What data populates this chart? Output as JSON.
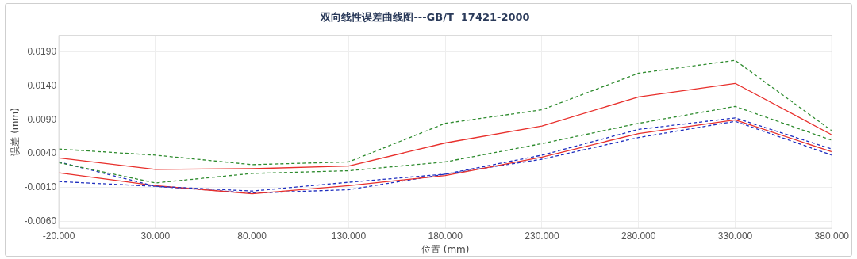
{
  "chart_data": {
    "type": "line",
    "title": "双向线性误差曲线图---GB/T  17421-2000",
    "xlabel": "位置 (mm)",
    "ylabel": "误差 (mm)",
    "x": [
      -20,
      30,
      80,
      130,
      180,
      230,
      280,
      330,
      380
    ],
    "series": [
      {
        "color": "#2e8b2e",
        "line_style": "dashed",
        "values": [
          0.0047,
          0.0038,
          0.0024,
          0.0028,
          0.0085,
          0.0105,
          0.0159,
          0.0178,
          0.0074
        ]
      },
      {
        "color": "#e8302c",
        "line_style": "solid",
        "values": [
          0.0034,
          0.0017,
          0.0018,
          0.0022,
          0.0056,
          0.0081,
          0.0124,
          0.0144,
          0.0068
        ]
      },
      {
        "color": "#2e8b2e",
        "line_style": "dashed",
        "values": [
          0.0027,
          -0.0003,
          0.0011,
          0.0015,
          0.0028,
          0.0055,
          0.0085,
          0.011,
          0.006
        ]
      },
      {
        "color": "#1f2fbf",
        "line_style": "dashed",
        "values": [
          0.0028,
          -0.0008,
          -0.0015,
          -0.0002,
          0.001,
          0.0038,
          0.0076,
          0.0093,
          0.0047
        ]
      },
      {
        "color": "#e8302c",
        "line_style": "solid",
        "values": [
          0.0012,
          -0.0007,
          -0.0019,
          -0.0007,
          0.0008,
          0.0035,
          0.007,
          0.009,
          0.0043
        ]
      },
      {
        "color": "#1f2fbf",
        "line_style": "dashed",
        "values": [
          -0.0001,
          -0.0008,
          -0.0018,
          -0.0013,
          0.001,
          0.0032,
          0.0064,
          0.0088,
          0.0038
        ]
      }
    ],
    "xlim": [
      -20,
      380
    ],
    "xticks": [
      {
        "value": -20,
        "label": "-20.000"
      },
      {
        "value": 30,
        "label": "30.000"
      },
      {
        "value": 80,
        "label": "80.000"
      },
      {
        "value": 130,
        "label": "130.000"
      },
      {
        "value": 180,
        "label": "180.000"
      },
      {
        "value": 230,
        "label": "230.000"
      },
      {
        "value": 280,
        "label": "280.000"
      },
      {
        "value": 330,
        "label": "330.000"
      },
      {
        "value": 380,
        "label": "380.000"
      }
    ],
    "ylim": [
      -0.007,
      0.0215
    ],
    "yticks": [
      {
        "value": -0.006,
        "label": "-0.0060"
      },
      {
        "value": -0.001,
        "label": "-0.0010"
      },
      {
        "value": 0.004,
        "label": "0.0040"
      },
      {
        "value": 0.009,
        "label": "0.0090"
      },
      {
        "value": 0.014,
        "label": "0.0140"
      },
      {
        "value": 0.019,
        "label": "0.0190"
      }
    ],
    "grid": true,
    "legend": false,
    "marker": "none"
  }
}
